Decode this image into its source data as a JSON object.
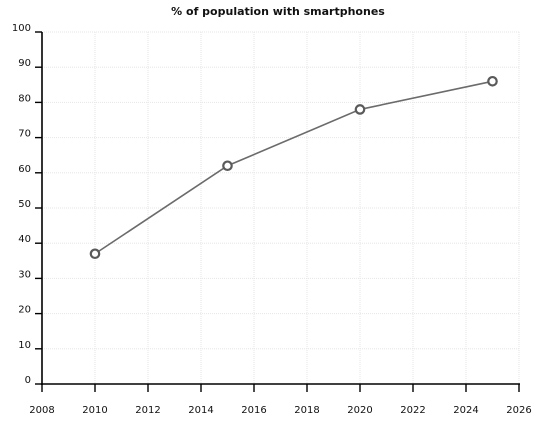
{
  "chart_data": {
    "type": "line",
    "title": "% of population with smartphones",
    "xlabel": "",
    "ylabel": "",
    "xlim": [
      2008,
      2026
    ],
    "ylim": [
      0,
      100
    ],
    "x_ticks": [
      2008,
      2010,
      2012,
      2014,
      2016,
      2018,
      2020,
      2022,
      2024,
      2026
    ],
    "y_ticks": [
      0,
      10,
      20,
      30,
      40,
      50,
      60,
      70,
      80,
      90,
      100
    ],
    "grid": true,
    "legend": "none",
    "series": [
      {
        "x": [
          2010,
          2015,
          2020,
          2025
        ],
        "y": [
          37,
          62,
          78,
          86
        ],
        "color": "#6b6b6b",
        "marker": "open-circle"
      }
    ]
  }
}
